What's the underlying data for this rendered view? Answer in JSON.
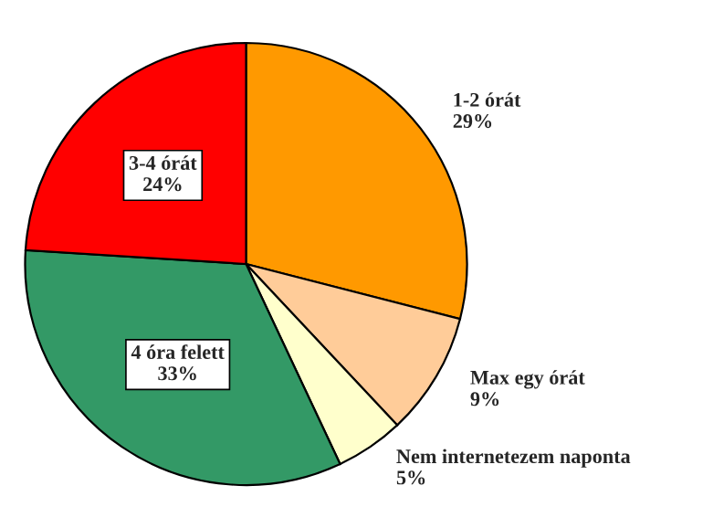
{
  "chart_data": {
    "type": "pie",
    "categories": [
      "1-2 órát",
      "Max egy órát",
      "Nem internetezem naponta",
      "4 óra felett",
      "3-4 órát"
    ],
    "values": [
      29,
      9,
      5,
      33,
      24
    ],
    "colors": [
      "#ff9900",
      "#ffcc99",
      "#ffffcc",
      "#339966",
      "#ff0000"
    ],
    "value_labels": [
      "29%",
      "9%",
      "5%",
      "33%",
      "24%"
    ]
  }
}
